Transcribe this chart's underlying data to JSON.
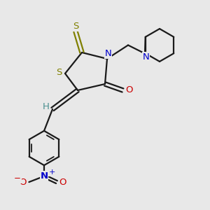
{
  "bg_color": "#e8e8e8",
  "bond_color": "#1a1a1a",
  "S_color": "#808000",
  "N_color": "#0000cc",
  "O_color": "#cc0000",
  "H_color": "#4a9090",
  "figsize": [
    3.0,
    3.0
  ],
  "dpi": 100,
  "xlim": [
    0,
    10
  ],
  "ylim": [
    0,
    10
  ],
  "lw": 1.6,
  "fs": 9.5
}
